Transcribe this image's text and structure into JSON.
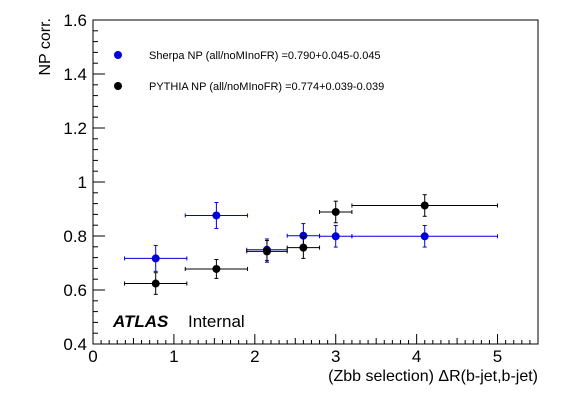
{
  "chart_data": {
    "type": "scatter",
    "xlabel": "(Zbb selection) ΔR(b-jet,b-jet)",
    "ylabel": "NP corr.",
    "xlim": [
      0,
      5.5
    ],
    "ylim": [
      0.4,
      1.6
    ],
    "x_ticks": [
      "0",
      "1",
      "2",
      "3",
      "4",
      "5"
    ],
    "y_ticks": [
      "0.4",
      "0.6",
      "0.8",
      "1",
      "1.2",
      "1.4",
      "1.6"
    ],
    "grid": false,
    "legend_position": "top-left",
    "atlas_label": "ATLAS",
    "atlas_sublabel": "Internal",
    "series": [
      {
        "name": "Sherpa NP (all/noMInoFR) =0.790+0.045-0.045",
        "color": "#0000dd",
        "points": [
          {
            "x": 0.775,
            "xerr": 0.385,
            "y": 0.717,
            "yerr": 0.048
          },
          {
            "x": 1.525,
            "xerr": 0.385,
            "y": 0.876,
            "yerr": 0.048
          },
          {
            "x": 2.15,
            "xerr": 0.25,
            "y": 0.749,
            "yerr": 0.04
          },
          {
            "x": 2.6,
            "xerr": 0.2,
            "y": 0.801,
            "yerr": 0.045
          },
          {
            "x": 3.0,
            "xerr": 0.2,
            "y": 0.799,
            "yerr": 0.04
          },
          {
            "x": 4.1,
            "xerr": 0.9,
            "y": 0.799,
            "yerr": 0.04
          }
        ]
      },
      {
        "name": "PYTHIA NP (all/noMInoFR) =0.774+0.039-0.039",
        "color": "#000000",
        "points": [
          {
            "x": 0.775,
            "xerr": 0.385,
            "y": 0.624,
            "yerr": 0.04
          },
          {
            "x": 1.525,
            "xerr": 0.385,
            "y": 0.678,
            "yerr": 0.035
          },
          {
            "x": 2.15,
            "xerr": 0.25,
            "y": 0.743,
            "yerr": 0.04
          },
          {
            "x": 2.6,
            "xerr": 0.2,
            "y": 0.757,
            "yerr": 0.04
          },
          {
            "x": 3.0,
            "xerr": 0.2,
            "y": 0.889,
            "yerr": 0.04
          },
          {
            "x": 4.1,
            "xerr": 0.9,
            "y": 0.913,
            "yerr": 0.04
          }
        ]
      }
    ]
  }
}
